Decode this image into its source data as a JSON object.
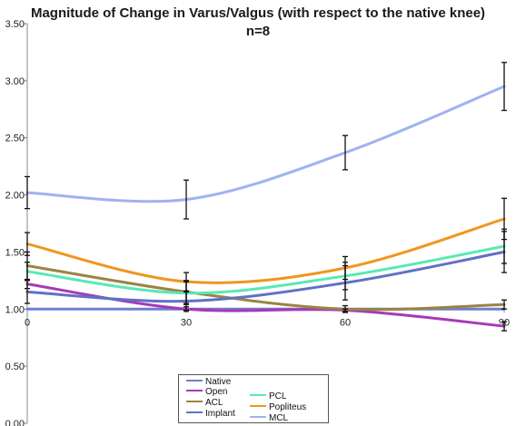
{
  "chart_data": {
    "type": "line",
    "title": "Magnitude of Change in Varus/Valgus (with respect to the native knee)",
    "subtitle": "n=8",
    "xlabel": "",
    "ylabel": "",
    "x": [
      0,
      30,
      60,
      90
    ],
    "x_ticks": [
      "0",
      "30",
      "60",
      "90"
    ],
    "ylim": [
      0,
      3.5
    ],
    "y_ticks": [
      "0.00",
      "0.50",
      "1.00",
      "1.50",
      "2.00",
      "2.50",
      "3.00",
      "3.50"
    ],
    "y_tick_values": [
      0,
      0.5,
      1.0,
      1.5,
      2.0,
      2.5,
      3.0,
      3.5
    ],
    "grid": false,
    "legend_position": "bottom-center",
    "series": [
      {
        "name": "Native",
        "color": "#6f7fd0",
        "values": [
          1.0,
          1.0,
          1.0,
          1.0
        ],
        "error": [
          0,
          0,
          0,
          0
        ]
      },
      {
        "name": "Open",
        "color": "#a63ab8",
        "values": [
          1.22,
          1.0,
          0.99,
          0.85
        ],
        "error": [
          0.04,
          0.02,
          0.01,
          0.04
        ]
      },
      {
        "name": "ACL",
        "color": "#9a8443",
        "values": [
          1.38,
          1.15,
          1.0,
          1.04
        ],
        "error": [
          0.12,
          0.1,
          0.03,
          0.04
        ]
      },
      {
        "name": "Implant",
        "color": "#6070c6",
        "values": [
          1.15,
          1.07,
          1.23,
          1.5
        ],
        "error": [
          0.1,
          0.08,
          0.15,
          0.18
        ]
      },
      {
        "name": "PCL",
        "color": "#5ae8b6",
        "values": [
          1.33,
          1.14,
          1.29,
          1.55
        ],
        "error": [
          0.08,
          0.1,
          0.12,
          0.15
        ]
      },
      {
        "name": "Popliteus",
        "color": "#f0961e",
        "values": [
          1.57,
          1.24,
          1.36,
          1.79
        ],
        "error": [
          0.1,
          0.08,
          0.1,
          0.18
        ]
      },
      {
        "name": "MCL",
        "color": "#9fb2f2",
        "values": [
          2.02,
          1.96,
          2.37,
          2.95
        ],
        "error": [
          0.14,
          0.17,
          0.15,
          0.21
        ]
      }
    ]
  }
}
